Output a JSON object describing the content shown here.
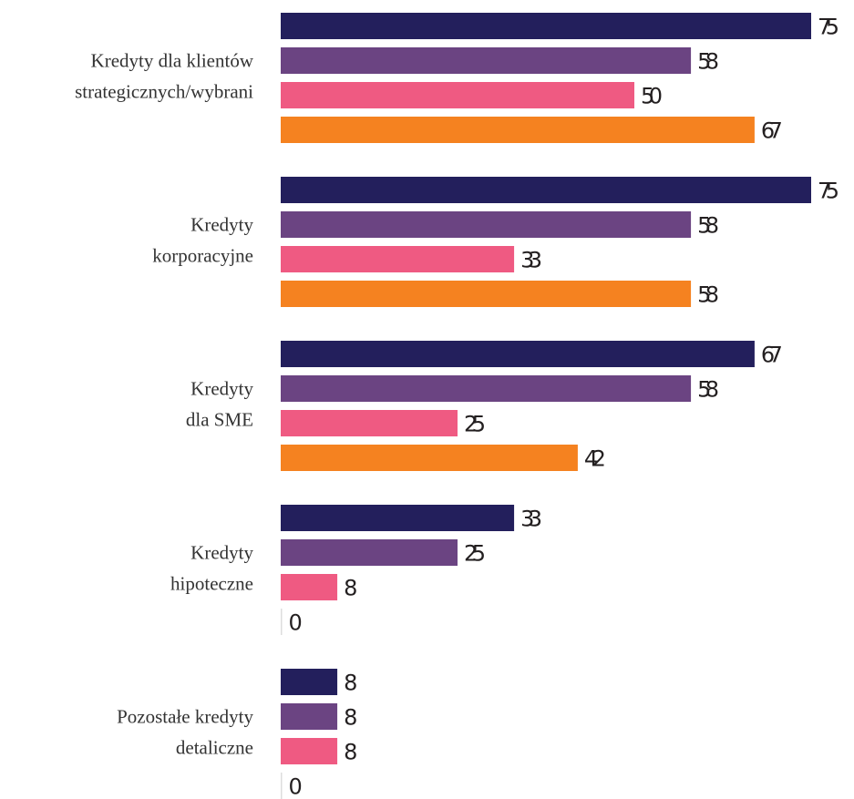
{
  "chart_data": {
    "type": "bar",
    "orientation": "horizontal",
    "categories": [
      [
        "Kredyty dla klientów",
        "strategicznych/wybrani"
      ],
      [
        "Kredyty",
        "korporacyjne"
      ],
      [
        "Kredyty",
        "dla SME"
      ],
      [
        "Kredyty",
        "hipoteczne"
      ],
      [
        "Pozostałe kredyty",
        "detaliczne"
      ]
    ],
    "series": [
      {
        "color": "#231f5c",
        "values": [
          75,
          75,
          67,
          33,
          8
        ]
      },
      {
        "color": "#6b4482",
        "values": [
          58,
          58,
          58,
          25,
          8
        ]
      },
      {
        "color": "#ef5a82",
        "values": [
          50,
          33,
          25,
          8,
          8
        ]
      },
      {
        "color": "#f58220",
        "values": [
          67,
          58,
          42,
          0,
          0
        ]
      }
    ],
    "xlim": [
      0,
      75
    ]
  }
}
